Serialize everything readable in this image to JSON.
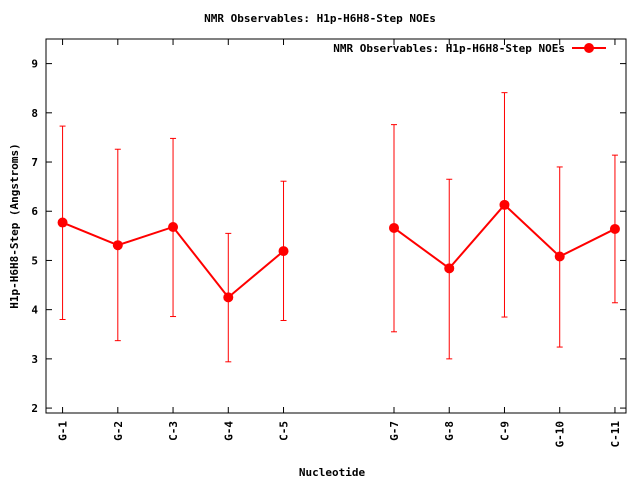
{
  "chart_data": {
    "type": "line",
    "title": "NMR Observables: H1p-H6H8-Step NOEs",
    "xlabel": "Nucleotide",
    "ylabel": "H1p-H6H8-Step (Angstroms)",
    "ylim": [
      1.9,
      9.5
    ],
    "yticks": [
      "2",
      "3",
      "4",
      "5",
      "6",
      "7",
      "8",
      "9"
    ],
    "x_range": [
      0.7,
      11.2
    ],
    "grid": false,
    "legend_position": "top-right",
    "categories": [
      {
        "label": "G-1",
        "pos": 1
      },
      {
        "label": "G-2",
        "pos": 2
      },
      {
        "label": "C-3",
        "pos": 3
      },
      {
        "label": "G-4",
        "pos": 4
      },
      {
        "label": "C-5",
        "pos": 5
      },
      {
        "label": "G-7",
        "pos": 7
      },
      {
        "label": "G-8",
        "pos": 8
      },
      {
        "label": "C-9",
        "pos": 9
      },
      {
        "label": "G-10",
        "pos": 10
      },
      {
        "label": "C-11",
        "pos": 11
      }
    ],
    "series": [
      {
        "name": "NMR Observables: H1p-H6H8-Step NOEs",
        "color": "#ff0000",
        "segments": [
          [
            {
              "x": 1,
              "y": 5.77,
              "low": 3.8,
              "high": 7.73
            },
            {
              "x": 2,
              "y": 5.31,
              "low": 3.37,
              "high": 7.26
            },
            {
              "x": 3,
              "y": 5.68,
              "low": 3.86,
              "high": 7.48
            },
            {
              "x": 4,
              "y": 4.25,
              "low": 2.94,
              "high": 5.55
            },
            {
              "x": 5,
              "y": 5.19,
              "low": 3.78,
              "high": 6.61
            }
          ],
          [
            {
              "x": 7,
              "y": 5.66,
              "low": 3.55,
              "high": 7.76
            },
            {
              "x": 8,
              "y": 4.84,
              "low": 3.0,
              "high": 6.65
            },
            {
              "x": 9,
              "y": 6.13,
              "low": 3.85,
              "high": 8.41
            },
            {
              "x": 10,
              "y": 5.08,
              "low": 3.24,
              "high": 6.9
            },
            {
              "x": 11,
              "y": 5.64,
              "low": 4.14,
              "high": 7.14
            }
          ]
        ]
      }
    ]
  }
}
